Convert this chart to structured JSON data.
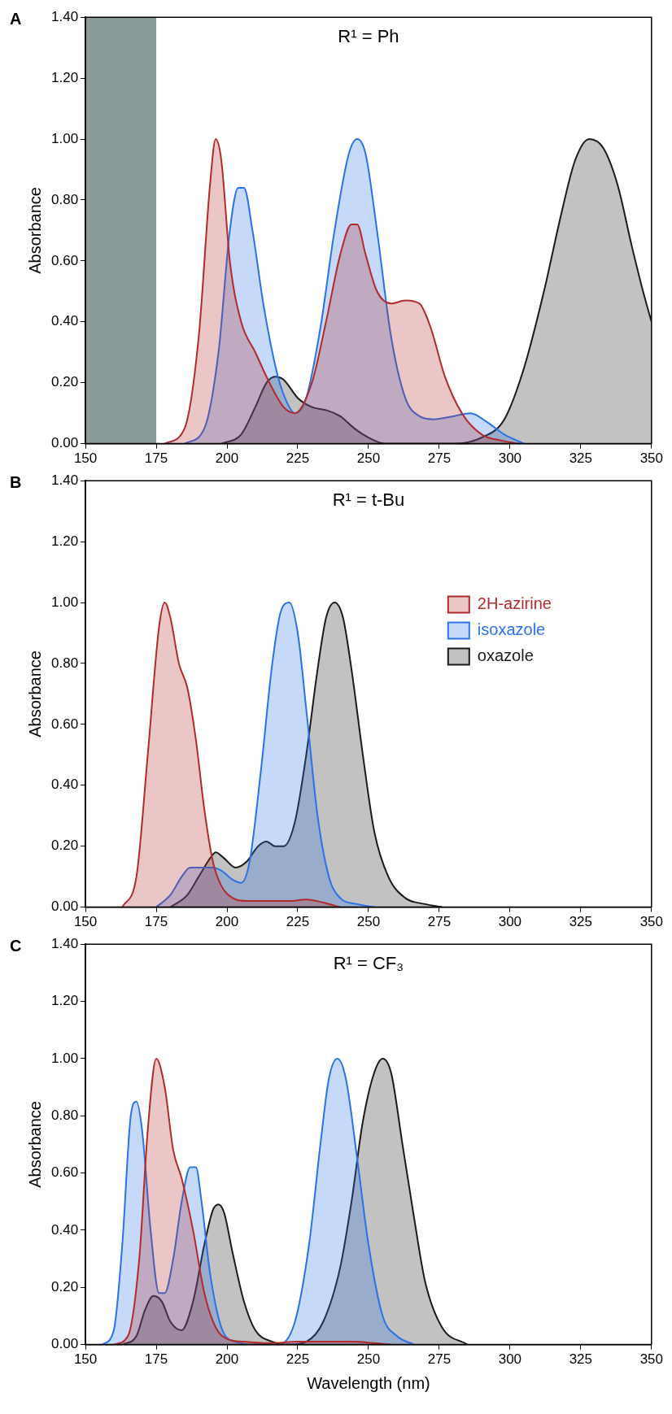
{
  "chart_data": [
    {
      "type": "area",
      "title": "R¹ = Ph",
      "ylabel": "Absorbance",
      "annotations": [
        "A"
      ],
      "xlim": [
        150,
        350
      ],
      "xticks": [
        150,
        175,
        200,
        225,
        250,
        275,
        300,
        325,
        350
      ],
      "ylim": [
        0,
        1.4
      ],
      "yticks": [
        {
          "value": 0,
          "label": "0.00"
        },
        {
          "value": 0.2,
          "label": "0.20"
        },
        {
          "value": 0.4,
          "label": "0.40"
        },
        {
          "value": 0.6,
          "label": "0.60"
        },
        {
          "value": 0.8,
          "label": "0.80"
        },
        {
          "value": 1,
          "label": "1.00"
        },
        {
          "value": 1.2,
          "label": "1.20"
        },
        {
          "value": 1.4,
          "label": "1.40"
        }
      ],
      "grid": false,
      "legend": false,
      "marker": "none",
      "line_style": "solid",
      "bands": [
        {
          "axis": "x",
          "from": 150,
          "to": 175,
          "color": "#8a9a98"
        }
      ],
      "series": [
        {
          "color": "#b22a2a",
          "x": [
            178,
            185,
            190,
            194,
            196,
            198,
            201,
            205,
            210,
            215,
            220,
            224,
            230,
            235,
            240,
            244,
            246,
            249,
            253,
            258,
            263,
            268,
            272,
            277,
            283,
            290,
            297,
            303
          ],
          "values": [
            0,
            0.05,
            0.35,
            0.85,
            1.0,
            0.93,
            0.6,
            0.4,
            0.3,
            0.2,
            0.12,
            0.1,
            0.2,
            0.4,
            0.62,
            0.72,
            0.72,
            0.62,
            0.5,
            0.46,
            0.47,
            0.46,
            0.38,
            0.22,
            0.1,
            0.03,
            0.01,
            0
          ]
        },
        {
          "color": "#2a72e8",
          "x": [
            185,
            192,
            197,
            201,
            204,
            206,
            209,
            213,
            218,
            222,
            224,
            228,
            233,
            238,
            243,
            246,
            249,
            253,
            258,
            263,
            268,
            273,
            280,
            286,
            292,
            298,
            305
          ],
          "values": [
            0,
            0.05,
            0.3,
            0.7,
            0.84,
            0.84,
            0.7,
            0.45,
            0.22,
            0.12,
            0.1,
            0.15,
            0.38,
            0.7,
            0.95,
            1.0,
            0.95,
            0.7,
            0.35,
            0.15,
            0.09,
            0.08,
            0.09,
            0.1,
            0.07,
            0.03,
            0
          ]
        },
        {
          "color": "#1a1a1a",
          "x": [
            198,
            205,
            210,
            214,
            217,
            220,
            225,
            230,
            235,
            240,
            245,
            250,
            256,
            265,
            280,
            290,
            298,
            305,
            312,
            318,
            323,
            328,
            333,
            338,
            343,
            347,
            350
          ],
          "values": [
            0,
            0.03,
            0.12,
            0.2,
            0.22,
            0.21,
            0.15,
            0.12,
            0.11,
            0.09,
            0.05,
            0.02,
            0,
            0,
            0,
            0.02,
            0.08,
            0.25,
            0.5,
            0.75,
            0.93,
            1.0,
            0.97,
            0.85,
            0.65,
            0.5,
            0.4
          ]
        }
      ]
    },
    {
      "type": "area",
      "title": "R¹ = t-Bu",
      "ylabel": "Absorbance",
      "annotations": [
        "B"
      ],
      "xlim": [
        150,
        350
      ],
      "xticks": [
        150,
        175,
        200,
        225,
        250,
        275,
        300,
        325,
        350
      ],
      "ylim": [
        0,
        1.4
      ],
      "yticks": [
        {
          "value": 0,
          "label": "0.00"
        },
        {
          "value": 0.2,
          "label": "0.20"
        },
        {
          "value": 0.4,
          "label": "0.40"
        },
        {
          "value": 0.6,
          "label": "0.60"
        },
        {
          "value": 0.8,
          "label": "0.80"
        },
        {
          "value": 1,
          "label": "1.00"
        },
        {
          "value": 1.2,
          "label": "1.20"
        },
        {
          "value": 1.4,
          "label": "1.40"
        }
      ],
      "grid": false,
      "legend": "right",
      "marker": "none",
      "line_style": "solid",
      "series": [
        {
          "name": "2H-azirine",
          "color": "#b22a2a",
          "x": [
            163,
            168,
            172,
            176,
            178,
            180,
            183,
            186,
            189,
            192,
            195,
            198,
            202,
            207,
            215,
            222,
            228,
            234,
            240
          ],
          "values": [
            0,
            0.1,
            0.5,
            0.92,
            1.0,
            0.95,
            0.8,
            0.72,
            0.55,
            0.32,
            0.15,
            0.07,
            0.03,
            0.02,
            0.02,
            0.02,
            0.025,
            0.015,
            0
          ]
        },
        {
          "name": "isoxazole",
          "color": "#2a72e8",
          "x": [
            175,
            180,
            184,
            187,
            191,
            195,
            198,
            202,
            205,
            208,
            212,
            216,
            219,
            222,
            225,
            228,
            232,
            236,
            240,
            246,
            252
          ],
          "values": [
            0,
            0.04,
            0.1,
            0.13,
            0.13,
            0.13,
            0.12,
            0.09,
            0.08,
            0.15,
            0.45,
            0.8,
            0.97,
            1.0,
            0.9,
            0.65,
            0.3,
            0.1,
            0.03,
            0.01,
            0
          ]
        },
        {
          "name": "oxazole",
          "color": "#1a1a1a",
          "x": [
            180,
            186,
            190,
            194,
            196,
            199,
            203,
            207,
            211,
            214,
            217,
            220,
            224,
            228,
            232,
            235,
            238,
            241,
            244,
            248,
            252,
            257,
            263,
            270,
            276
          ],
          "values": [
            0,
            0.04,
            0.1,
            0.16,
            0.18,
            0.16,
            0.13,
            0.15,
            0.2,
            0.215,
            0.2,
            0.2,
            0.28,
            0.5,
            0.78,
            0.95,
            1.0,
            0.95,
            0.78,
            0.5,
            0.25,
            0.1,
            0.03,
            0.01,
            0
          ]
        }
      ]
    },
    {
      "type": "area",
      "title": "R¹ = CF₃",
      "xlabel": "Wavelength (nm)",
      "ylabel": "Absorbance",
      "annotations": [
        "C"
      ],
      "xlim": [
        150,
        350
      ],
      "xticks": [
        150,
        175,
        200,
        225,
        250,
        275,
        300,
        325,
        350
      ],
      "ylim": [
        0,
        1.4
      ],
      "yticks": [
        {
          "value": 0,
          "label": "0.00"
        },
        {
          "value": 0.2,
          "label": "0.20"
        },
        {
          "value": 0.4,
          "label": "0.40"
        },
        {
          "value": 0.6,
          "label": "0.60"
        },
        {
          "value": 0.8,
          "label": "0.80"
        },
        {
          "value": 1,
          "label": "1.00"
        },
        {
          "value": 1.2,
          "label": "1.20"
        },
        {
          "value": 1.4,
          "label": "1.40"
        }
      ],
      "grid": false,
      "legend": false,
      "marker": "none",
      "line_style": "solid",
      "series": [
        {
          "color": "#b22a2a",
          "x": [
            160,
            165,
            169,
            172,
            175,
            178,
            181,
            184,
            188,
            192,
            196,
            200,
            206,
            215,
            225,
            235,
            245,
            252,
            258
          ],
          "values": [
            0,
            0.03,
            0.3,
            0.75,
            1.0,
            0.9,
            0.68,
            0.58,
            0.4,
            0.18,
            0.06,
            0.02,
            0.01,
            0.005,
            0.01,
            0.01,
            0.01,
            0.005,
            0
          ]
        },
        {
          "color": "#2a72e8",
          "x": [
            156,
            160,
            163,
            166,
            168,
            170,
            173,
            176,
            178,
            181,
            184,
            187,
            189,
            191,
            194,
            198,
            203,
            210,
            218,
            224,
            229,
            233,
            236,
            239,
            242,
            246,
            250,
            255,
            260,
            266
          ],
          "values": [
            0,
            0.05,
            0.35,
            0.8,
            0.85,
            0.75,
            0.4,
            0.18,
            0.18,
            0.3,
            0.5,
            0.62,
            0.62,
            0.5,
            0.25,
            0.06,
            0.01,
            0,
            0,
            0.08,
            0.35,
            0.7,
            0.93,
            1.0,
            0.93,
            0.65,
            0.35,
            0.1,
            0.03,
            0
          ]
        },
        {
          "color": "#1a1a1a",
          "x": [
            163,
            168,
            171,
            174,
            177,
            180,
            184,
            188,
            192,
            195,
            197,
            199,
            202,
            206,
            210,
            216,
            222,
            228,
            234,
            240,
            244,
            248,
            252,
            255,
            258,
            262,
            266,
            270,
            276,
            285
          ],
          "values": [
            0,
            0.03,
            0.12,
            0.17,
            0.15,
            0.08,
            0.05,
            0.15,
            0.35,
            0.47,
            0.49,
            0.46,
            0.32,
            0.15,
            0.05,
            0.01,
            0,
            0.01,
            0.08,
            0.27,
            0.5,
            0.78,
            0.95,
            1.0,
            0.95,
            0.7,
            0.45,
            0.22,
            0.06,
            0
          ]
        }
      ]
    }
  ]
}
